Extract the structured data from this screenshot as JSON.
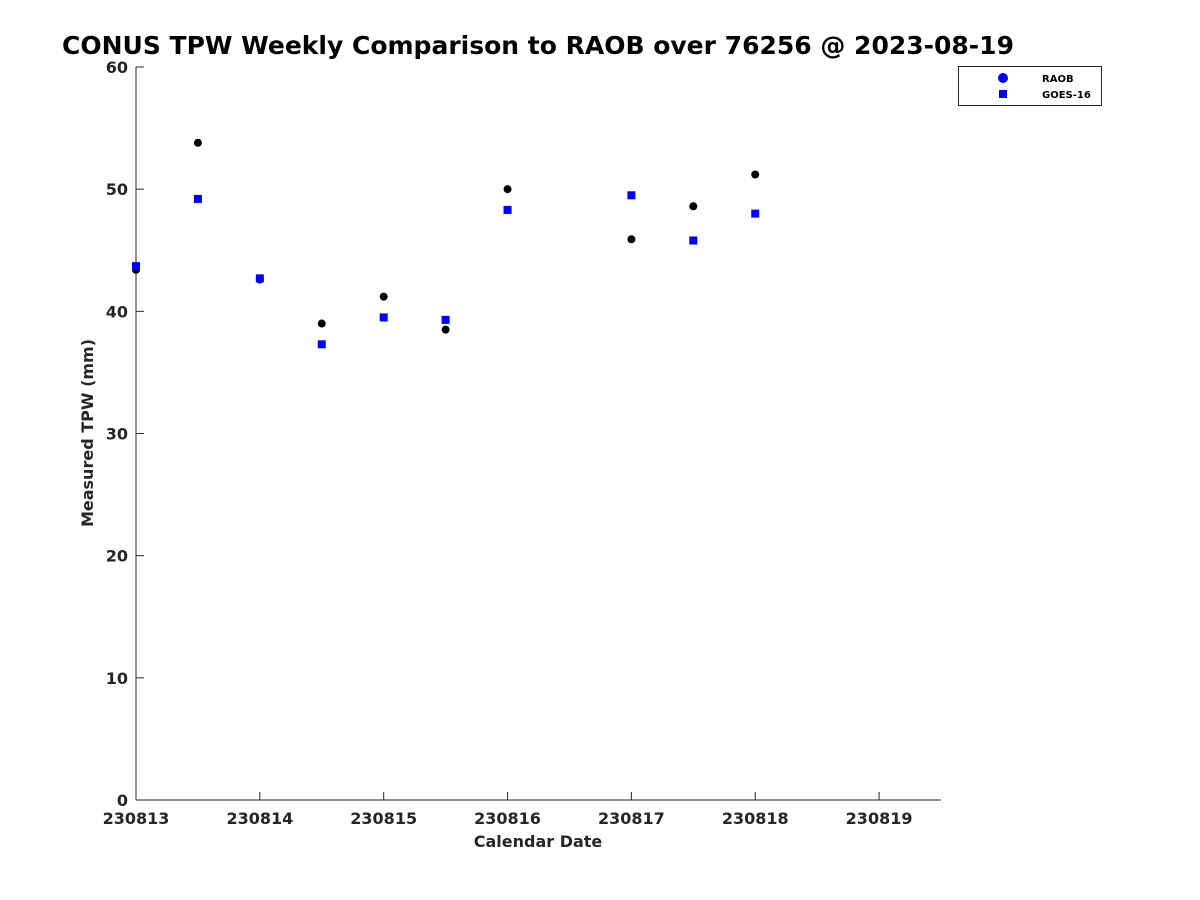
{
  "chart_data": {
    "type": "scatter",
    "title": "CONUS TPW Weekly Comparison to RAOB over 76256 @ 2023-08-19",
    "xlabel": "Calendar Date",
    "ylabel": "Measured TPW (mm)",
    "x_tick_labels": [
      "230813",
      "230814",
      "230815",
      "230816",
      "230817",
      "230818",
      "230819"
    ],
    "y_ticks": [
      0,
      10,
      20,
      30,
      40,
      50,
      60
    ],
    "xlim": [
      0,
      6.5
    ],
    "ylim": [
      0,
      60
    ],
    "legend_position": "top-right",
    "series": [
      {
        "name": "RAOB",
        "marker": "circle",
        "color": "#000000",
        "legend_color": "#0000ff",
        "x": [
          0,
          0.5,
          1,
          1.5,
          2,
          2.5,
          3,
          4,
          4.5,
          5
        ],
        "values": [
          43.4,
          53.8,
          42.6,
          39.0,
          41.2,
          38.5,
          50.0,
          45.9,
          48.6,
          51.2
        ]
      },
      {
        "name": "GOES-16",
        "marker": "square",
        "color": "#0000ff",
        "legend_color": "#0000ff",
        "x": [
          0,
          0.5,
          1,
          1.5,
          2,
          2.5,
          3,
          4,
          4.5,
          5
        ],
        "values": [
          43.7,
          49.2,
          42.7,
          37.3,
          39.5,
          39.3,
          48.3,
          49.5,
          45.8,
          48.0
        ]
      }
    ]
  }
}
